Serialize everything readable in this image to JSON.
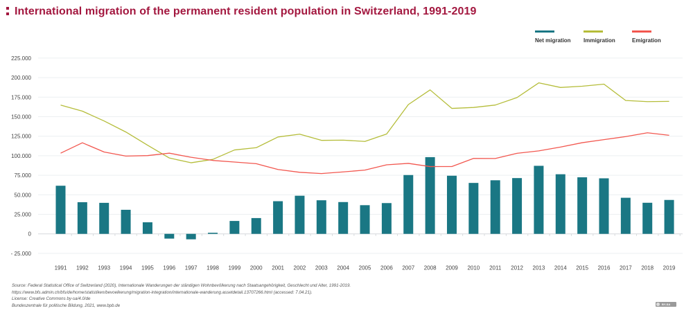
{
  "header": {
    "title": "International migration of the permanent resident population in Switzerland, 1991-2019"
  },
  "colors": {
    "title": "#a3173f",
    "net_migration": "#1a7784",
    "immigration": "#b5bd3a",
    "emigration": "#f2574f",
    "grid": "#eceff1"
  },
  "chart_data": {
    "type": "bar+line",
    "title": "International migration of the permanent resident population in Switzerland, 1991-2019",
    "xlabel": "",
    "ylabel": "",
    "ylim": [
      -25000,
      225000
    ],
    "yticks": [
      225000,
      200000,
      175000,
      150000,
      125000,
      100000,
      75000,
      50000,
      25000,
      0,
      -25000
    ],
    "ytick_labels": [
      "225.000",
      "200.000",
      "175.000",
      "150.000",
      "125.000",
      "100.000",
      "75.000",
      "50.000",
      "25.000",
      "0",
      "- 25.000"
    ],
    "grid": true,
    "legend_position": "top-right",
    "categories": [
      "1991",
      "1992",
      "1993",
      "1994",
      "1995",
      "1996",
      "1997",
      "1998",
      "1999",
      "2000",
      "2001",
      "2002",
      "2003",
      "2004",
      "2005",
      "2006",
      "2007",
      "2008",
      "2009",
      "2010",
      "2011",
      "2012",
      "2013",
      "2014",
      "2015",
      "2016",
      "2017",
      "2018",
      "2019"
    ],
    "series": [
      {
        "name": "Net migration",
        "kind": "bar",
        "color": "#1a7784",
        "values": [
          61600,
          40500,
          39700,
          30800,
          14800,
          -6100,
          -7000,
          1400,
          16500,
          20200,
          41800,
          48800,
          43000,
          40700,
          36700,
          39400,
          75300,
          98200,
          74400,
          65200,
          68600,
          71400,
          87100,
          76300,
          72400,
          71100,
          46200,
          39800,
          43400
        ]
      },
      {
        "name": "Immigration",
        "kind": "line",
        "color": "#b5bd3a",
        "values": [
          164900,
          157100,
          144500,
          130400,
          113500,
          97100,
          91000,
          95300,
          107400,
          110300,
          124000,
          127600,
          119700,
          120000,
          118300,
          127800,
          165500,
          184300,
          160600,
          161800,
          164900,
          174500,
          193300,
          187400,
          189000,
          191700,
          170700,
          169300,
          169600
        ]
      },
      {
        "name": "Emigration",
        "kind": "line",
        "color": "#f2574f",
        "values": [
          103300,
          116600,
          104800,
          99600,
          100200,
          103300,
          98000,
          94000,
          91900,
          89800,
          82400,
          78800,
          77200,
          79300,
          81600,
          88400,
          90200,
          86100,
          86200,
          96600,
          96500,
          103100,
          106200,
          111100,
          116700,
          120600,
          124500,
          129400,
          126200
        ]
      }
    ]
  },
  "legend": [
    {
      "label": "Net migration",
      "color": "#1a7784"
    },
    {
      "label": "Immigration",
      "color": "#b5bd3a"
    },
    {
      "label": "Emigration",
      "color": "#f2574f"
    }
  ],
  "footer": {
    "lines": [
      "Source: Federal Statistical Office of Switzerland (2020), Internationale Wanderungen der ständigen Wohnbevölkerung nach Staatsangehörigkeit, Geschlecht und Alter, 1991-2019.",
      "https://www.bfs.admin.ch/bfs/de/home/statistiken/bevoelkerung/migration-integration/internationale-wanderung.assetdetail.13707266.html (accessed: 7.04.21).",
      "License: Creative Commons by-sa/4.0/de",
      "Bundeszentrale für politische Bildung, 2021, www.bpb.de"
    ],
    "badge": "BY-SA"
  }
}
